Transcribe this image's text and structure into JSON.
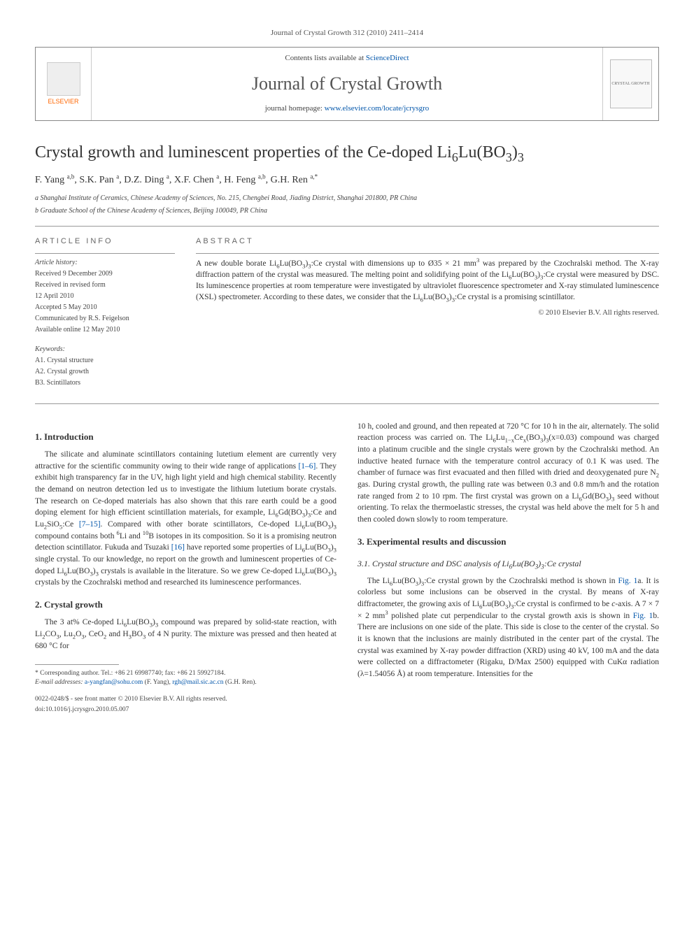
{
  "journal_ref": "Journal of Crystal Growth 312 (2010) 2411–2414",
  "header": {
    "elsevier": "ELSEVIER",
    "contents_prefix": "Contents lists available at ",
    "contents_link": "ScienceDirect",
    "journal_title": "Journal of Crystal Growth",
    "homepage_prefix": "journal homepage: ",
    "homepage_url": "www.elsevier.com/locate/jcrysgro",
    "cover_text": "CRYSTAL GROWTH"
  },
  "title_html": "Crystal growth and luminescent properties of the Ce-doped Li<sub>6</sub>Lu(BO<sub>3</sub>)<sub>3</sub>",
  "authors_html": "F. Yang <sup>a,b</sup>, S.K. Pan <sup>a</sup>, D.Z. Ding <sup>a</sup>, X.F. Chen <sup>a</sup>, H. Feng <sup>a,b</sup>, G.H. Ren <sup>a,*</sup>",
  "affiliations": [
    "a Shanghai Institute of Ceramics, Chinese Academy of Sciences, No. 215, Chengbei Road, Jiading District, Shanghai 201800, PR China",
    "b Graduate School of the Chinese Academy of Sciences, Beijing 100049, PR China"
  ],
  "article_info": {
    "heading": "ARTICLE INFO",
    "history_label": "Article history:",
    "history": [
      "Received 9 December 2009",
      "Received in revised form",
      "12 April 2010",
      "Accepted 5 May 2010",
      "Communicated by R.S. Feigelson",
      "Available online 12 May 2010"
    ],
    "keywords_label": "Keywords:",
    "keywords": [
      "A1. Crystal structure",
      "A2. Crystal growth",
      "B3. Scintillators"
    ]
  },
  "abstract": {
    "heading": "ABSTRACT",
    "text_html": "A new double borate Li<sub>6</sub>Lu(BO<sub>3</sub>)<sub>3</sub>:Ce crystal with dimensions up to Ø35 × 21 mm<sup>3</sup> was prepared by the Czochralski method. The X-ray diffraction pattern of the crystal was measured. The melting point and solidifying point of the Li<sub>6</sub>Lu(BO<sub>3</sub>)<sub>3</sub>:Ce crystal were measured by DSC. Its luminescence properties at room temperature were investigated by ultraviolet fluorescence spectrometer and X-ray stimulated luminescence (XSL) spectrometer. According to these dates, we consider that the Li<sub>6</sub>Lu(BO<sub>3</sub>)<sub>3</sub>:Ce crystal is a promising scintillator.",
    "copyright": "© 2010 Elsevier B.V. All rights reserved."
  },
  "sections": {
    "intro_heading": "1. Introduction",
    "intro_html": "The silicate and aluminate scintillators containing lutetium element are currently very attractive for the scientific community owing to their wide range of applications <a href='#'>[1–6]</a>. They exhibit high transparency far in the UV, high light yield and high chemical stability. Recently the demand on neutron detection led us to investigate the lithium lutetium borate crystals. The research on Ce-doped materials has also shown that this rare earth could be a good doping element for high efficient scintillation materials, for example, Li<sub>6</sub>Gd(BO<sub>3</sub>)<sub>3</sub>:Ce and Lu<sub>2</sub>SiO<sub>5</sub>:Ce <a href='#'>[7–15]</a>. Compared with other borate scintillators, Ce-doped Li<sub>6</sub>Lu(BO<sub>3</sub>)<sub>3</sub> compound contains both <sup>6</sup>Li and <sup>10</sup>B isotopes in its composition. So it is a promising neutron detection scintillator. Fukuda and Tsuzaki <a href='#'>[16]</a> have reported some properties of Li<sub>6</sub>Lu(BO<sub>3</sub>)<sub>3</sub> single crystal. To our knowledge, no report on the growth and luminescent properties of Ce-doped Li<sub>6</sub>Lu(BO<sub>3</sub>)<sub>3</sub> crystals is available in the literature. So we grew Ce-doped Li<sub>6</sub>Lu(BO<sub>3</sub>)<sub>3</sub> crystals by the Czochralski method and researched its luminescence performances.",
    "growth_heading": "2. Crystal growth",
    "growth_left_html": "The 3 at% Ce-doped Li<sub>6</sub>Lu(BO<sub>3</sub>)<sub>3</sub> compound was prepared by solid-state reaction, with Li<sub>2</sub>CO<sub>3</sub>, Lu<sub>2</sub>O<sub>3</sub>, CeO<sub>2</sub> and H<sub>3</sub>BO<sub>3</sub> of 4 N purity. The mixture was pressed and then heated at 680 °C for",
    "growth_right_html": "10 h, cooled and ground, and then repeated at 720 °C for 10 h in the air, alternately. The solid reaction process was carried on. The Li<sub>6</sub>Lu<sub>1−x</sub>Ce<sub>x</sub>(BO<sub>3</sub>)<sub>3</sub>(x=0.03) compound was charged into a platinum crucible and the single crystals were grown by the Czochralski method. An inductive heated furnace with the temperature control accuracy of 0.1 K was used. The chamber of furnace was first evacuated and then filled with dried and deoxygenated pure N<sub>2</sub> gas. During crystal growth, the pulling rate was between 0.3 and 0.8 mm/h and the rotation rate ranged from 2 to 10 rpm. The first crystal was grown on a Li<sub>6</sub>Gd(BO<sub>3</sub>)<sub>3</sub> seed without orienting. To relax the thermoelastic stresses, the crystal was held above the melt for 5 h and then cooled down slowly to room temperature.",
    "results_heading": "3. Experimental results and discussion",
    "sub31_heading_html": "3.1. Crystal structure and DSC analysis of Li<sub>6</sub>Lu(BO<sub>3</sub>)<sub>3</sub>:Ce crystal",
    "sub31_html": "The Li<sub>6</sub>Lu(BO<sub>3</sub>)<sub>3</sub>:Ce crystal grown by the Czochralski method is shown in <a href='#'>Fig. 1</a>a. It is colorless but some inclusions can be observed in the crystal. By means of X-ray diffractometer, the growing axis of Li<sub>6</sub>Lu(BO<sub>3</sub>)<sub>3</sub>:Ce crystal is confirmed to be <i>c</i>-axis. A 7 × 7 × 2 mm<sup>3</sup> polished plate cut perpendicular to the crystal growth axis is shown in <a href='#'>Fig. 1</a>b. There are inclusions on one side of the plate. This side is close to the center of the crystal. So it is known that the inclusions are mainly distributed in the center part of the crystal. The crystal was examined by X-ray powder diffraction (XRD) using 40 kV, 100 mA and the data were collected on a diffractometer (Rigaku, D/Max 2500) equipped with CuKα radiation (λ=1.54056 Å) at room temperature. Intensities for the"
  },
  "footnote": {
    "corr_html": "* Corresponding author. Tel.: +86 21 69987740; fax: +86 21 59927184.",
    "email_label": "E-mail addresses:",
    "emails_html": "<a href='#'>a-yangfan@sohu.com</a> (F. Yang), <a href='#'>rgh@mail.sic.ac.cn</a> (G.H. Ren)."
  },
  "footer": {
    "line1": "0022-0248/$ - see front matter © 2010 Elsevier B.V. All rights reserved.",
    "line2": "doi:10.1016/j.jcrysgro.2010.05.007"
  },
  "colors": {
    "link": "#0055aa",
    "text": "#333333",
    "muted": "#555555",
    "orange": "#ff6600",
    "border": "#888888"
  }
}
